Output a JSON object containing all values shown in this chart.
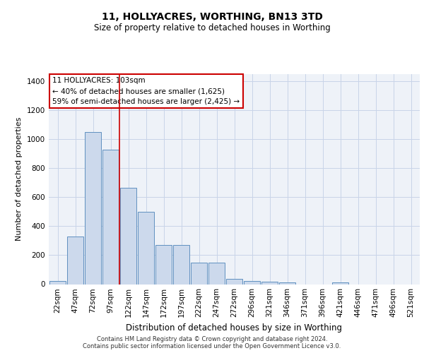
{
  "title": "11, HOLLYACRES, WORTHING, BN13 3TD",
  "subtitle": "Size of property relative to detached houses in Worthing",
  "xlabel": "Distribution of detached houses by size in Worthing",
  "ylabel": "Number of detached properties",
  "bar_labels": [
    "22sqm",
    "47sqm",
    "72sqm",
    "97sqm",
    "122sqm",
    "147sqm",
    "172sqm",
    "197sqm",
    "222sqm",
    "247sqm",
    "272sqm",
    "296sqm",
    "321sqm",
    "346sqm",
    "371sqm",
    "396sqm",
    "421sqm",
    "446sqm",
    "471sqm",
    "496sqm",
    "521sqm"
  ],
  "bar_values": [
    20,
    330,
    1050,
    930,
    665,
    500,
    270,
    270,
    150,
    150,
    35,
    20,
    15,
    10,
    0,
    0,
    10,
    0,
    0,
    0,
    0
  ],
  "bar_color": "#ccd9ec",
  "bar_edge_color": "#6090c0",
  "grid_color": "#c8d4e8",
  "background_color": "#eef2f8",
  "red_line_x": 3.5,
  "annotation_text": "11 HOLLYACRES: 103sqm\n← 40% of detached houses are smaller (1,625)\n59% of semi-detached houses are larger (2,425) →",
  "annotation_box_color": "#ffffff",
  "annotation_box_edge": "#cc0000",
  "ylim": [
    0,
    1450
  ],
  "yticks": [
    0,
    200,
    400,
    600,
    800,
    1000,
    1200,
    1400
  ],
  "footer": "Contains HM Land Registry data © Crown copyright and database right 2024.\nContains public sector information licensed under the Open Government Licence v3.0.",
  "red_line_color": "#cc0000",
  "title_fontsize": 10,
  "subtitle_fontsize": 8.5,
  "ylabel_fontsize": 8,
  "xlabel_fontsize": 8.5,
  "tick_fontsize": 7.5,
  "annot_fontsize": 7.5,
  "footer_fontsize": 6.0
}
